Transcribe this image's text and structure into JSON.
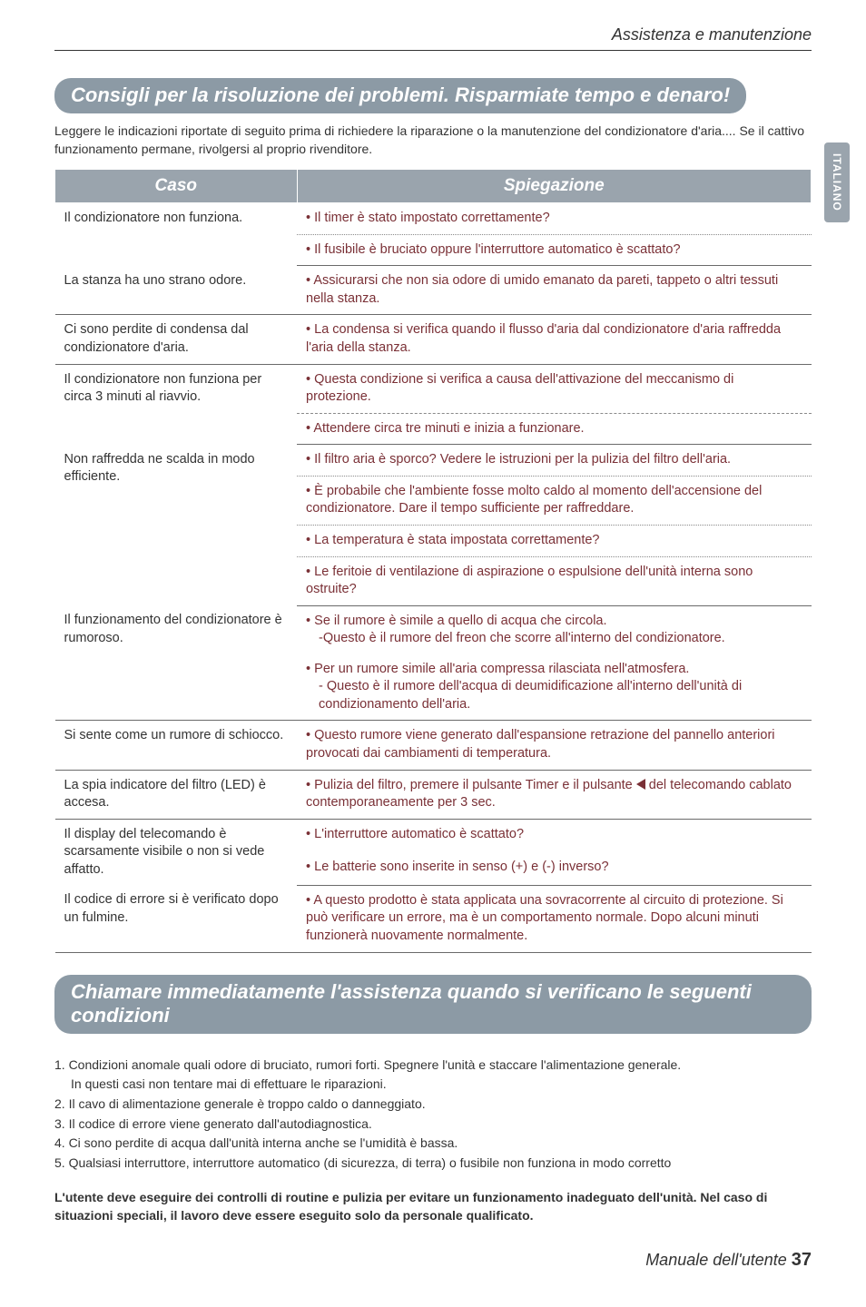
{
  "colors": {
    "pill_bg": "#8c9aa5",
    "header_bg": "#9aa4ad",
    "right_text": "#7a3036",
    "body_text": "#333333",
    "side_tab_bg": "#9aa4ad",
    "border": "#6a6a6a"
  },
  "typography": {
    "body_fontsize": 14,
    "pill_fontsize": 22,
    "header_fontsize": 19,
    "cell_fontsize": 14.5,
    "footer_fontsize": 18
  },
  "topline": "Assistenza e manutenzione",
  "side_tab": "ITALIANO",
  "section1": {
    "title": "Consigli per la risoluzione dei problemi. Risparmiate tempo e denaro!",
    "intro": "Leggere le indicazioni riportate di seguito prima di richiedere la riparazione o la manutenzione del condizionatore d'aria.... Se il cattivo funzionamento permane, rivolgersi al proprio rivenditore.",
    "col1": "Caso",
    "col2": "Spiegazione",
    "rows": {
      "r1_left": "Il condizionatore non funziona.",
      "r1a": "• Il timer è stato impostato correttamente?",
      "r1b": "• Il fusibile è bruciato oppure l'interruttore automatico è scattato?",
      "r2_left": "La stanza ha uno strano odore.",
      "r2a": "• Assicurarsi che non sia odore di umido emanato da pareti, tappeto o altri tessuti nella stanza.",
      "r3_left": "Ci sono perdite di condensa dal condizionatore d'aria.",
      "r3a": "• La condensa si verifica quando il flusso d'aria dal condizionatore d'aria raffredda l'aria della stanza.",
      "r4_left": "Il condizionatore non funziona per circa 3 minuti al riavvio.",
      "r4a": "• Questa condizione si verifica a causa dell'attivazione del meccanismo di protezione.",
      "r4b": "• Attendere circa tre minuti e inizia a funzionare.",
      "r5_left": "Non raffredda ne scalda in modo efficiente.",
      "r5a": "• Il filtro aria è sporco? Vedere le istruzioni per la pulizia del filtro dell'aria.",
      "r5b": "• È probabile che l'ambiente fosse molto caldo al momento dell'accensione del condizionatore. Dare il tempo sufficiente per raffreddare.",
      "r5c": "• La temperatura è stata impostata correttamente?",
      "r5d": "• Le feritoie di ventilazione di aspirazione o espulsione dell'unità interna sono ostruite?",
      "r6_left": "Il funzionamento del condizionatore è rumoroso.",
      "r6a": "• Se il rumore è simile a quello di acqua che circola.",
      "r6a_sub": "-Questo è il rumore del freon che scorre all'interno del condizionatore.",
      "r6b": "• Per un rumore simile all'aria compressa rilasciata nell'atmosfera.",
      "r6b_sub": "- Questo è il rumore dell'acqua di deumidificazione all'interno dell'unità di condizionamento dell'aria.",
      "r7_left": "Si sente come un rumore di schiocco.",
      "r7a": "• Questo rumore viene generato dall'espansione retrazione del pannello anteriori provocati dai cambiamenti di temperatura.",
      "r8_left": "La spia indicatore del filtro (LED) è accesa.",
      "r8a_pre": "• Pulizia del filtro, premere il pulsante Timer e il pulsante ",
      "r8a_post": " del telecomando cablato  contemporaneamente per 3 sec.",
      "r9_left": "Il display del telecomando è scarsamente visibile o non si vede affatto.",
      "r9a": "• L'interruttore automatico è scattato?",
      "r9b": "• Le batterie sono inserite in senso (+) e (-) inverso?",
      "r10_left": "Il codice di errore si è verificato dopo un fulmine.",
      "r10a": "• A questo prodotto è stata applicata una sovracorrente al circuito di protezione. Si può verificare un errore, ma è un comportamento normale. Dopo alcuni minuti funzionerà nuovamente normalmente."
    }
  },
  "section2": {
    "title": "Chiamare immediatamente l'assistenza quando si verificano le seguenti condizioni",
    "items": {
      "l1": "1. Condizioni anomale quali odore di bruciato, rumori forti. Spegnere l'unità e staccare l'alimentazione generale.",
      "l1_sub": "In questi casi non tentare mai di effettuare le riparazioni.",
      "l2": "2. Il cavo di alimentazione generale è troppo caldo o danneggiato.",
      "l3": "3. Il codice di errore viene generato dall'autodiagnostica.",
      "l4": "4. Ci sono perdite di acqua dall'unità interna anche se l'umidità è bassa.",
      "l5": "5. Qualsiasi interruttore, interruttore automatico (di sicurezza, di terra) o fusibile non funziona in modo corretto"
    },
    "note": "L'utente deve eseguire dei controlli di routine e pulizia per evitare un funzionamento inadeguato dell'unità. Nel caso di situazioni speciali, il lavoro deve essere eseguito solo da personale qualificato."
  },
  "footer": {
    "text": "Manuale dell'utente ",
    "page": "37"
  }
}
